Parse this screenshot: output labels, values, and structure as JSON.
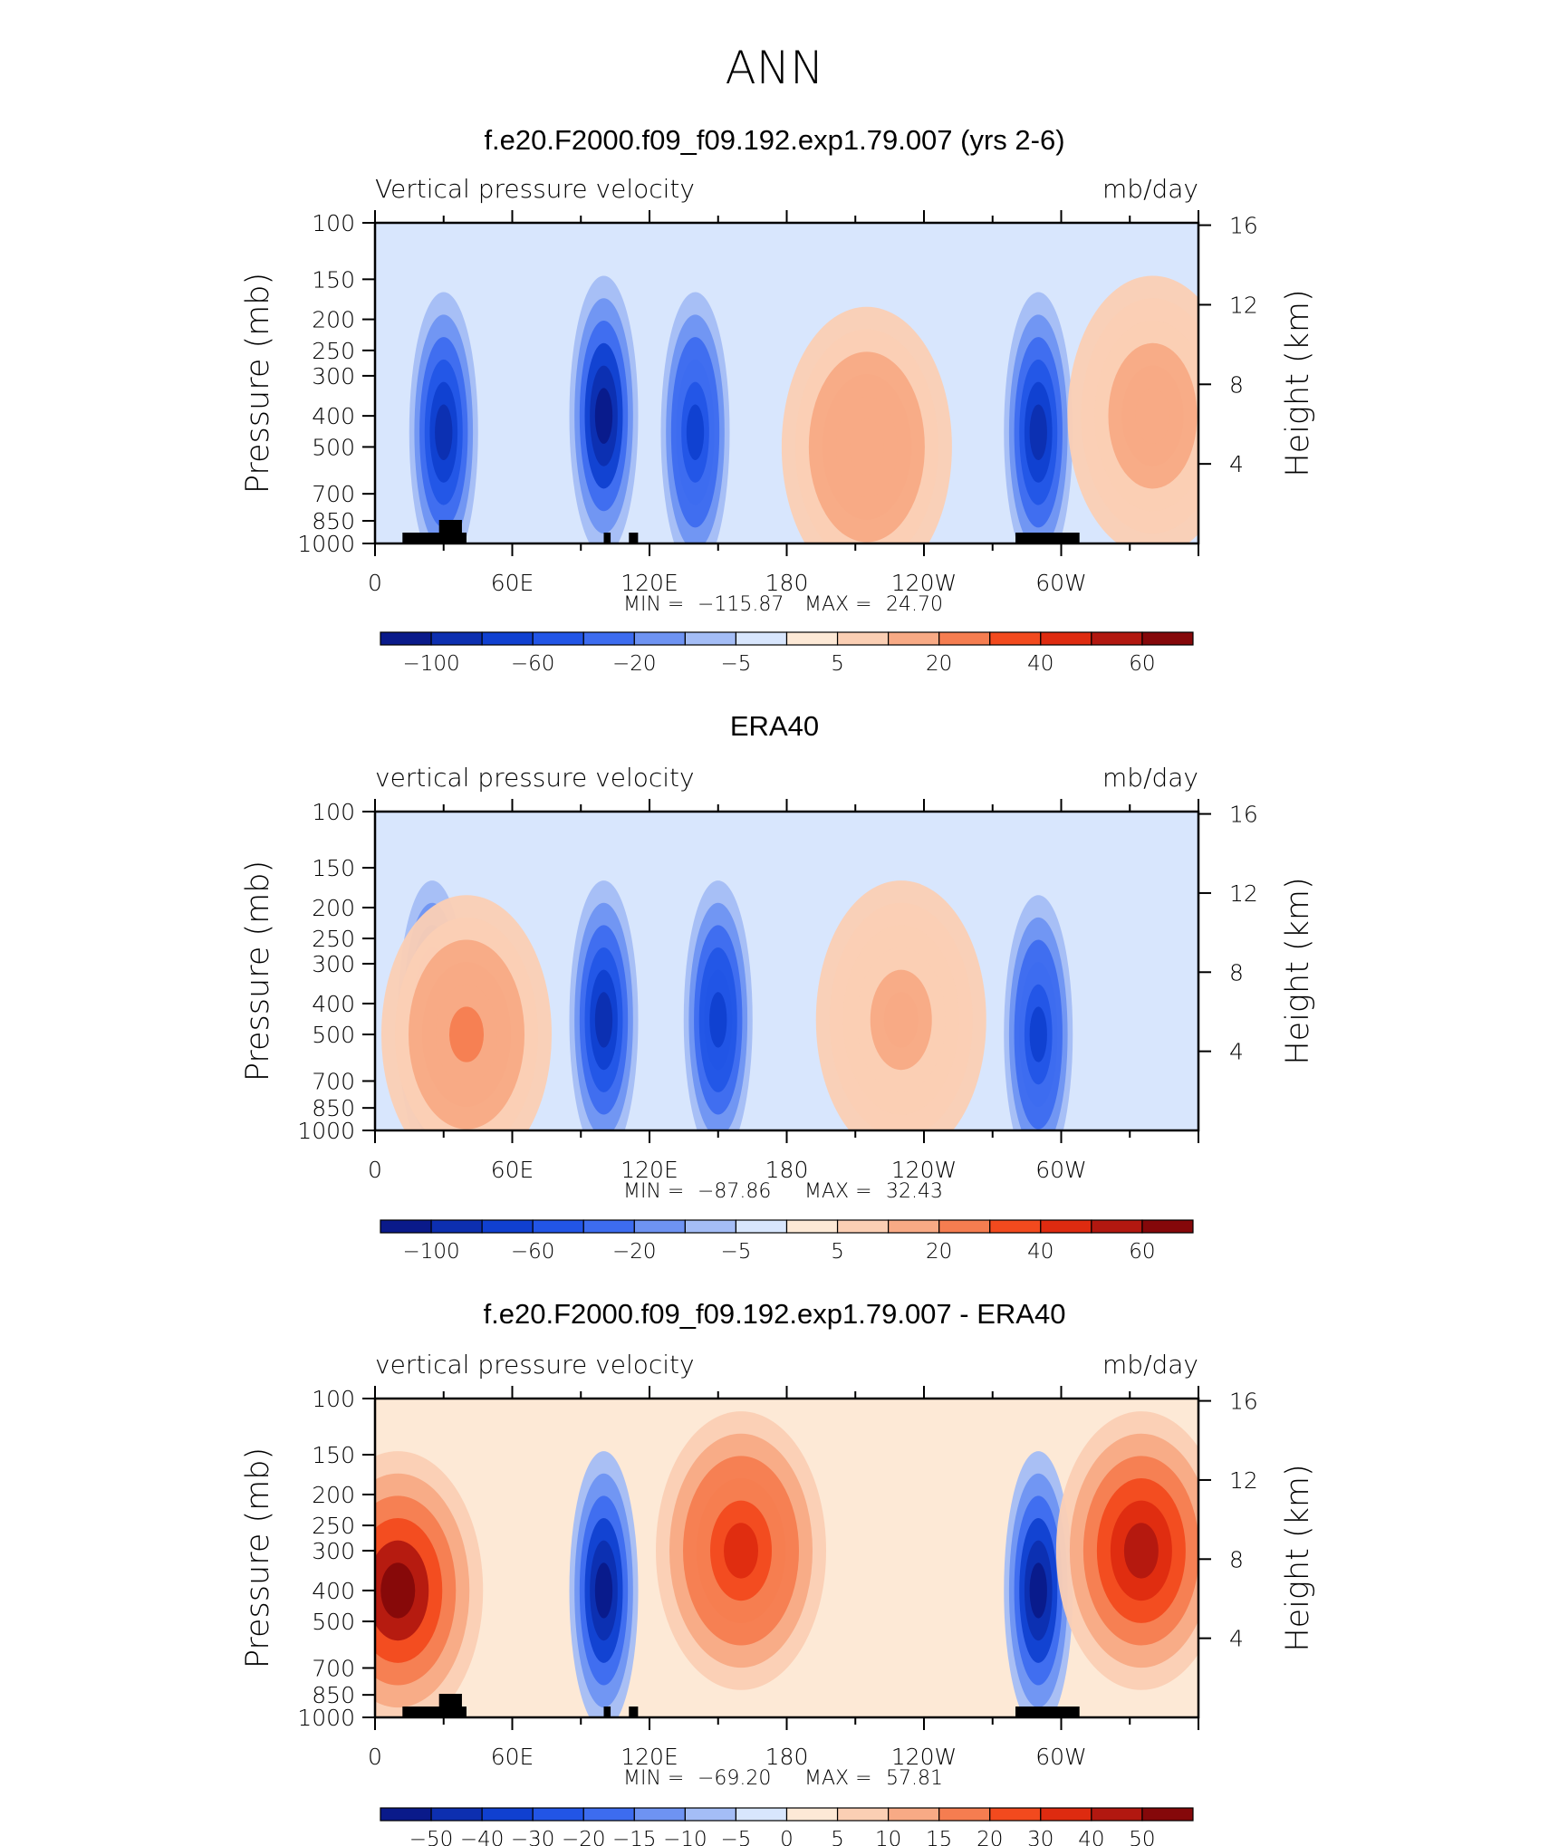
{
  "page": {
    "title": "ANN"
  },
  "colors": {
    "frame": "#000000",
    "topography": "#000000"
  },
  "chart_data": [
    {
      "type": "heatmap",
      "title": "f.e20.F2000.f09_f09.192.exp1.79.007 (yrs 2-6)",
      "left_label": "Vertical pressure velocity",
      "right_label": "mb/day",
      "ylabel": "Pressure (mb)",
      "ylabel_right": "Height (km)",
      "x_ticks": [
        "0",
        "60E",
        "120E",
        "180",
        "120W",
        "60W"
      ],
      "y_ticks": [
        "100",
        "150",
        "200",
        "250",
        "300",
        "400",
        "500",
        "700",
        "850",
        "1000"
      ],
      "y_right_ticks": [
        "16",
        "12",
        "8",
        "4"
      ],
      "stats": {
        "min_label": "MIN =",
        "min": "−115.87",
        "max_label": "MAX =",
        "max": "24.70"
      },
      "colorbar_labels": [
        "−100",
        "−60",
        "−20",
        "−5",
        "5",
        "20",
        "40",
        "60"
      ],
      "palette": [
        "#0a1a8a",
        "#0d2fb0",
        "#1040d0",
        "#2255e6",
        "#3d6cef",
        "#6e93f2",
        "#a4bdf6",
        "#d8e6fd",
        "#fde9d6",
        "#fbcfb4",
        "#f8aa85",
        "#f57d50",
        "#f24a1e",
        "#de2b10",
        "#b21810",
        "#85080a"
      ],
      "field": [
        {
          "lon": 30,
          "p": 450,
          "v": -95
        },
        {
          "lon": 100,
          "p": 400,
          "v": -116
        },
        {
          "lon": 140,
          "p": 450,
          "v": -70
        },
        {
          "lon": 215,
          "p": 500,
          "v": 24
        },
        {
          "lon": 290,
          "p": 450,
          "v": -90
        },
        {
          "lon": 340,
          "p": 400,
          "v": 20
        }
      ],
      "topography": true
    },
    {
      "type": "heatmap",
      "title": "ERA40",
      "left_label": "vertical pressure velocity",
      "right_label": "mb/day",
      "ylabel": "Pressure (mb)",
      "ylabel_right": "Height (km)",
      "x_ticks": [
        "0",
        "60E",
        "120E",
        "180",
        "120W",
        "60W"
      ],
      "y_ticks": [
        "100",
        "150",
        "200",
        "250",
        "300",
        "400",
        "500",
        "700",
        "850",
        "1000"
      ],
      "y_right_ticks": [
        "16",
        "12",
        "8",
        "4"
      ],
      "stats": {
        "min_label": "MIN =",
        "min": "−87.86",
        "max_label": "MAX =",
        "max": "32.43"
      },
      "colorbar_labels": [
        "−100",
        "−60",
        "−20",
        "−5",
        "5",
        "20",
        "40",
        "60"
      ],
      "palette": [
        "#0a1a8a",
        "#0d2fb0",
        "#1040d0",
        "#2255e6",
        "#3d6cef",
        "#6e93f2",
        "#a4bdf6",
        "#d8e6fd",
        "#fde9d6",
        "#fbcfb4",
        "#f8aa85",
        "#f57d50",
        "#f24a1e",
        "#de2b10",
        "#b21810",
        "#85080a"
      ],
      "field": [
        {
          "lon": 25,
          "p": 450,
          "v": -70
        },
        {
          "lon": 100,
          "p": 450,
          "v": -88
        },
        {
          "lon": 150,
          "p": 450,
          "v": -80
        },
        {
          "lon": 230,
          "p": 450,
          "v": 15
        },
        {
          "lon": 290,
          "p": 500,
          "v": -70
        },
        {
          "lon": 40,
          "p": 500,
          "v": 32
        }
      ],
      "topography": false
    },
    {
      "type": "heatmap",
      "title": "f.e20.F2000.f09_f09.192.exp1.79.007 - ERA40",
      "left_label": "vertical pressure velocity",
      "right_label": "mb/day",
      "ylabel": "Pressure (mb)",
      "ylabel_right": "Height (km)",
      "x_ticks": [
        "0",
        "60E",
        "120E",
        "180",
        "120W",
        "60W"
      ],
      "y_ticks": [
        "100",
        "150",
        "200",
        "250",
        "300",
        "400",
        "500",
        "700",
        "850",
        "1000"
      ],
      "y_right_ticks": [
        "16",
        "12",
        "8",
        "4"
      ],
      "stats": {
        "min_label": "MIN =",
        "min": "−69.20",
        "max_label": "MAX =",
        "max": "57.81"
      },
      "colorbar_labels": [
        "−50",
        "−40",
        "−30",
        "−20",
        "−15",
        "−10",
        "−5",
        "0",
        "5",
        "10",
        "15",
        "20",
        "30",
        "40",
        "50"
      ],
      "palette": [
        "#0a1a8a",
        "#0d2fb0",
        "#1040d0",
        "#2255e6",
        "#3d6cef",
        "#6e93f2",
        "#a4bdf6",
        "#d8e6fd",
        "#fde9d6",
        "#fbcfb4",
        "#f8aa85",
        "#f57d50",
        "#f24a1e",
        "#de2b10",
        "#b21810",
        "#85080a"
      ],
      "field": [
        {
          "lon": 10,
          "p": 400,
          "v": 57
        },
        {
          "lon": 100,
          "p": 400,
          "v": -69
        },
        {
          "lon": 160,
          "p": 300,
          "v": 40
        },
        {
          "lon": 290,
          "p": 400,
          "v": -65
        },
        {
          "lon": 335,
          "p": 300,
          "v": 45
        }
      ],
      "topography": true
    }
  ]
}
